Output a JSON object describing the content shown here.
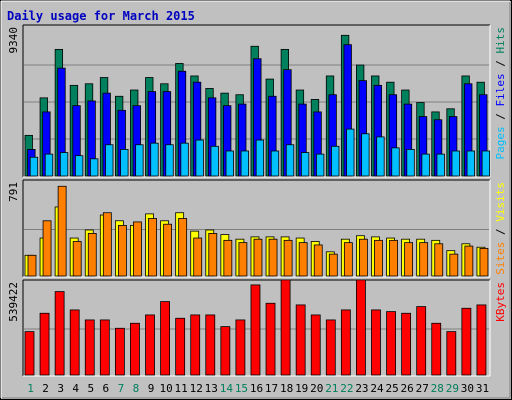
{
  "chart_data": {
    "type": "bar",
    "title": "Daily usage for March 2015",
    "categories": [
      "1",
      "2",
      "3",
      "4",
      "5",
      "6",
      "7",
      "8",
      "9",
      "10",
      "11",
      "12",
      "13",
      "14",
      "15",
      "16",
      "17",
      "18",
      "19",
      "20",
      "21",
      "22",
      "23",
      "24",
      "25",
      "26",
      "27",
      "28",
      "29",
      "30",
      "31"
    ],
    "weekend_days": [
      "1",
      "7",
      "8",
      "14",
      "15",
      "21",
      "22",
      "28",
      "29"
    ],
    "panels": [
      {
        "name": "hits-files-pages",
        "max_label": "9340",
        "ymax": 9340,
        "axis_label": [
          {
            "text": "Pages",
            "color": "#00c0ff"
          },
          {
            "text": " / ",
            "color": "#000000"
          },
          {
            "text": "Files",
            "color": "#0000ff"
          },
          {
            "text": " / ",
            "color": "#000000"
          },
          {
            "text": "Hits",
            "color": "#00805c"
          }
        ],
        "series": [
          {
            "name": "Hits",
            "color": "#00805c",
            "values": [
              2600,
              5000,
              8100,
              5800,
              5900,
              6300,
              5100,
              5500,
              6300,
              5900,
              7200,
              6400,
              5600,
              5300,
              5200,
              8300,
              6200,
              8100,
              5500,
              4900,
              6400,
              9000,
              7100,
              6400,
              6000,
              5500,
              4700,
              4100,
              4300,
              6400,
              6000
            ]
          },
          {
            "name": "Files",
            "color": "#0000ff",
            "values": [
              1700,
              4100,
              6900,
              4500,
              4800,
              5300,
              4200,
              4500,
              5400,
              5400,
              6700,
              6000,
              5000,
              4500,
              4600,
              7500,
              5100,
              6800,
              4600,
              4100,
              5200,
              8400,
              6100,
              5800,
              5200,
              4600,
              3800,
              3600,
              3800,
              5900,
              5200
            ]
          },
          {
            "name": "Pages",
            "color": "#00c0ff",
            "values": [
              1200,
              1400,
              1500,
              1300,
              1100,
              2000,
              1700,
              2000,
              2100,
              2000,
              2100,
              2300,
              1900,
              1600,
              1600,
              2300,
              1600,
              2000,
              1500,
              1400,
              1900,
              3000,
              2700,
              2500,
              1800,
              1700,
              1400,
              1400,
              1600,
              1600,
              1600
            ]
          }
        ]
      },
      {
        "name": "visits-sites",
        "max_label": "791",
        "ymax": 791,
        "axis_label": [
          {
            "text": "Sites",
            "color": "#ff8000"
          },
          {
            "text": " / ",
            "color": "#000000"
          },
          {
            "text": "Visits",
            "color": "#ffff00"
          }
        ],
        "series": [
          {
            "name": "Visits",
            "color": "#ffff00",
            "values": [
              180,
              330,
              600,
              330,
              400,
              530,
              480,
              440,
              540,
              480,
              550,
              390,
              400,
              360,
              320,
              340,
              340,
              340,
              330,
              300,
              210,
              320,
              350,
              340,
              330,
              320,
              320,
              310,
              220,
              280,
              250
            ]
          },
          {
            "name": "Sites",
            "color": "#ff8000",
            "values": [
              180,
              480,
              780,
              300,
              370,
              550,
              440,
              470,
              500,
              450,
              500,
              330,
              370,
              310,
              290,
              320,
              320,
              310,
              290,
              270,
              190,
              290,
              320,
              310,
              310,
              290,
              290,
              280,
              190,
              260,
              240
            ]
          }
        ]
      },
      {
        "name": "kbytes",
        "max_label": "539422",
        "ymax": 539422,
        "axis_label": [
          {
            "text": "KBytes",
            "color": "#ff0000"
          }
        ],
        "series": [
          {
            "name": "KBytes",
            "color": "#ff0000",
            "values": [
              260000,
              370000,
              500000,
              390000,
              330000,
              330000,
              280000,
              310000,
              360000,
              440000,
              340000,
              360000,
              360000,
              290000,
              330000,
              540000,
              430000,
              570000,
              420000,
              360000,
              330000,
              390000,
              570000,
              390000,
              380000,
              370000,
              410000,
              310000,
              260000,
              400000,
              420000
            ]
          }
        ]
      }
    ]
  }
}
